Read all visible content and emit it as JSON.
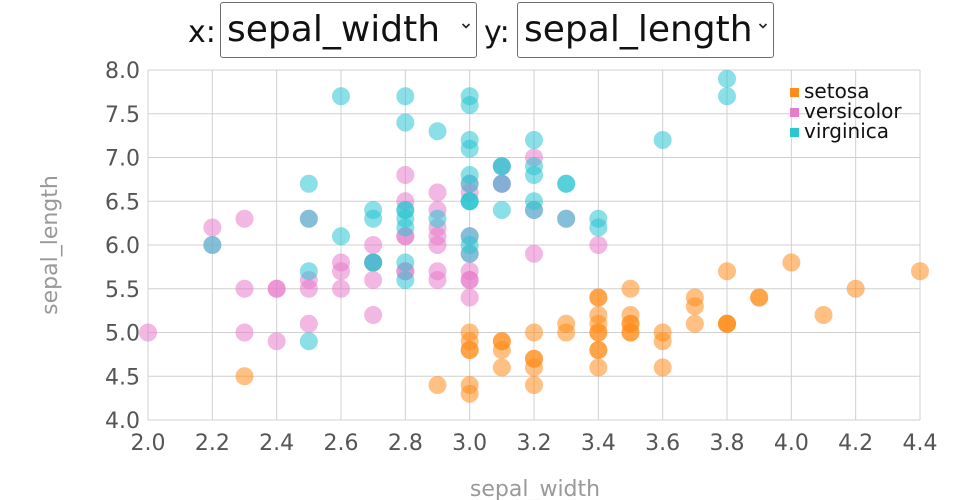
{
  "controls": {
    "x_prefix": "x:",
    "x_value": "sepal_width",
    "y_prefix": "y:",
    "y_value": "sepal_length"
  },
  "colors": {
    "setosa": "#ff8c1a",
    "versicolor": "#e87ccb",
    "virginica": "#2cc5d2"
  },
  "icons": {
    "dropdown": "chevron-down-icon"
  },
  "chart_data": {
    "type": "scatter",
    "xlabel": "sepal_width",
    "ylabel": "sepal_length",
    "xlim": [
      2.0,
      4.4
    ],
    "ylim": [
      4.0,
      8.0
    ],
    "x_ticks": [
      "2.0",
      "2.2",
      "2.4",
      "2.6",
      "2.8",
      "3.0",
      "3.2",
      "3.4",
      "3.6",
      "3.8",
      "4.0",
      "4.2",
      "4.4"
    ],
    "y_ticks": [
      "4.0",
      "4.5",
      "5.0",
      "5.5",
      "6.0",
      "6.5",
      "7.0",
      "7.5",
      "8.0"
    ],
    "grid": true,
    "legend_position": "top-right",
    "series": [
      {
        "name": "setosa",
        "color": "#ff8c1a",
        "points": [
          [
            3.5,
            5.1
          ],
          [
            3.0,
            4.9
          ],
          [
            3.2,
            4.7
          ],
          [
            3.1,
            4.6
          ],
          [
            3.6,
            5.0
          ],
          [
            3.9,
            5.4
          ],
          [
            3.4,
            4.6
          ],
          [
            3.4,
            5.0
          ],
          [
            2.9,
            4.4
          ],
          [
            3.1,
            4.9
          ],
          [
            3.7,
            5.4
          ],
          [
            3.4,
            4.8
          ],
          [
            3.0,
            4.8
          ],
          [
            3.0,
            4.3
          ],
          [
            4.0,
            5.8
          ],
          [
            4.4,
            5.7
          ],
          [
            3.9,
            5.4
          ],
          [
            3.5,
            5.1
          ],
          [
            3.8,
            5.7
          ],
          [
            3.8,
            5.1
          ],
          [
            3.4,
            5.4
          ],
          [
            3.7,
            5.1
          ],
          [
            3.6,
            4.6
          ],
          [
            3.3,
            5.1
          ],
          [
            3.4,
            4.8
          ],
          [
            3.0,
            5.0
          ],
          [
            3.4,
            5.0
          ],
          [
            3.5,
            5.2
          ],
          [
            3.4,
            5.2
          ],
          [
            3.2,
            4.7
          ],
          [
            3.1,
            4.8
          ],
          [
            3.4,
            5.4
          ],
          [
            4.1,
            5.2
          ],
          [
            4.2,
            5.5
          ],
          [
            3.1,
            4.9
          ],
          [
            3.2,
            5.0
          ],
          [
            3.5,
            5.5
          ],
          [
            3.6,
            4.9
          ],
          [
            3.0,
            4.4
          ],
          [
            3.4,
            5.1
          ],
          [
            3.5,
            5.0
          ],
          [
            2.3,
            4.5
          ],
          [
            3.2,
            4.4
          ],
          [
            3.5,
            5.0
          ],
          [
            3.8,
            5.1
          ],
          [
            3.0,
            4.8
          ],
          [
            3.8,
            5.1
          ],
          [
            3.2,
            4.6
          ],
          [
            3.7,
            5.3
          ],
          [
            3.3,
            5.0
          ]
        ]
      },
      {
        "name": "versicolor",
        "color": "#e87ccb",
        "points": [
          [
            3.2,
            7.0
          ],
          [
            3.2,
            6.4
          ],
          [
            3.1,
            6.9
          ],
          [
            2.3,
            5.5
          ],
          [
            2.8,
            6.5
          ],
          [
            2.8,
            5.7
          ],
          [
            3.3,
            6.3
          ],
          [
            2.4,
            4.9
          ],
          [
            2.9,
            6.6
          ],
          [
            2.7,
            5.2
          ],
          [
            2.0,
            5.0
          ],
          [
            3.0,
            5.9
          ],
          [
            2.2,
            6.0
          ],
          [
            2.9,
            6.1
          ],
          [
            2.9,
            5.6
          ],
          [
            3.1,
            6.7
          ],
          [
            3.0,
            5.6
          ],
          [
            2.7,
            5.8
          ],
          [
            2.2,
            6.2
          ],
          [
            2.5,
            5.6
          ],
          [
            3.2,
            5.9
          ],
          [
            2.8,
            6.1
          ],
          [
            2.5,
            6.3
          ],
          [
            2.8,
            6.1
          ],
          [
            2.9,
            6.4
          ],
          [
            3.0,
            6.6
          ],
          [
            2.8,
            6.8
          ],
          [
            3.0,
            6.7
          ],
          [
            2.9,
            6.0
          ],
          [
            2.6,
            5.7
          ],
          [
            2.4,
            5.5
          ],
          [
            2.4,
            5.5
          ],
          [
            2.7,
            5.8
          ],
          [
            2.7,
            6.0
          ],
          [
            3.0,
            5.4
          ],
          [
            3.4,
            6.0
          ],
          [
            3.1,
            6.7
          ],
          [
            2.3,
            6.3
          ],
          [
            3.0,
            5.6
          ],
          [
            2.5,
            5.5
          ],
          [
            2.6,
            5.5
          ],
          [
            3.0,
            6.1
          ],
          [
            2.6,
            5.8
          ],
          [
            2.3,
            5.0
          ],
          [
            2.7,
            5.6
          ],
          [
            3.0,
            5.7
          ],
          [
            2.9,
            5.7
          ],
          [
            2.9,
            6.2
          ],
          [
            2.5,
            5.1
          ],
          [
            2.8,
            5.7
          ]
        ]
      },
      {
        "name": "virginica",
        "color": "#2cc5d2",
        "points": [
          [
            3.3,
            6.3
          ],
          [
            2.7,
            5.8
          ],
          [
            3.0,
            7.1
          ],
          [
            2.9,
            6.3
          ],
          [
            3.0,
            6.5
          ],
          [
            3.0,
            7.6
          ],
          [
            2.5,
            4.9
          ],
          [
            2.9,
            7.3
          ],
          [
            2.5,
            6.7
          ],
          [
            3.6,
            7.2
          ],
          [
            3.2,
            6.5
          ],
          [
            2.7,
            6.4
          ],
          [
            3.0,
            6.8
          ],
          [
            2.5,
            5.7
          ],
          [
            2.8,
            5.8
          ],
          [
            3.2,
            6.4
          ],
          [
            3.0,
            6.5
          ],
          [
            3.8,
            7.7
          ],
          [
            2.6,
            7.7
          ],
          [
            2.2,
            6.0
          ],
          [
            3.2,
            6.9
          ],
          [
            2.8,
            5.6
          ],
          [
            2.8,
            7.7
          ],
          [
            2.7,
            6.3
          ],
          [
            3.3,
            6.7
          ],
          [
            3.2,
            7.2
          ],
          [
            2.8,
            6.2
          ],
          [
            3.0,
            6.1
          ],
          [
            2.8,
            6.4
          ],
          [
            3.0,
            7.2
          ],
          [
            2.8,
            7.4
          ],
          [
            3.8,
            7.9
          ],
          [
            2.8,
            6.4
          ],
          [
            2.8,
            6.3
          ],
          [
            2.6,
            6.1
          ],
          [
            3.0,
            7.7
          ],
          [
            3.4,
            6.3
          ],
          [
            3.1,
            6.4
          ],
          [
            3.0,
            6.0
          ],
          [
            3.1,
            6.9
          ],
          [
            3.1,
            6.7
          ],
          [
            3.1,
            6.9
          ],
          [
            2.7,
            5.8
          ],
          [
            3.2,
            6.8
          ],
          [
            3.3,
            6.7
          ],
          [
            3.0,
            6.7
          ],
          [
            2.5,
            6.3
          ],
          [
            3.0,
            6.5
          ],
          [
            3.4,
            6.2
          ],
          [
            3.0,
            5.9
          ]
        ]
      }
    ]
  }
}
